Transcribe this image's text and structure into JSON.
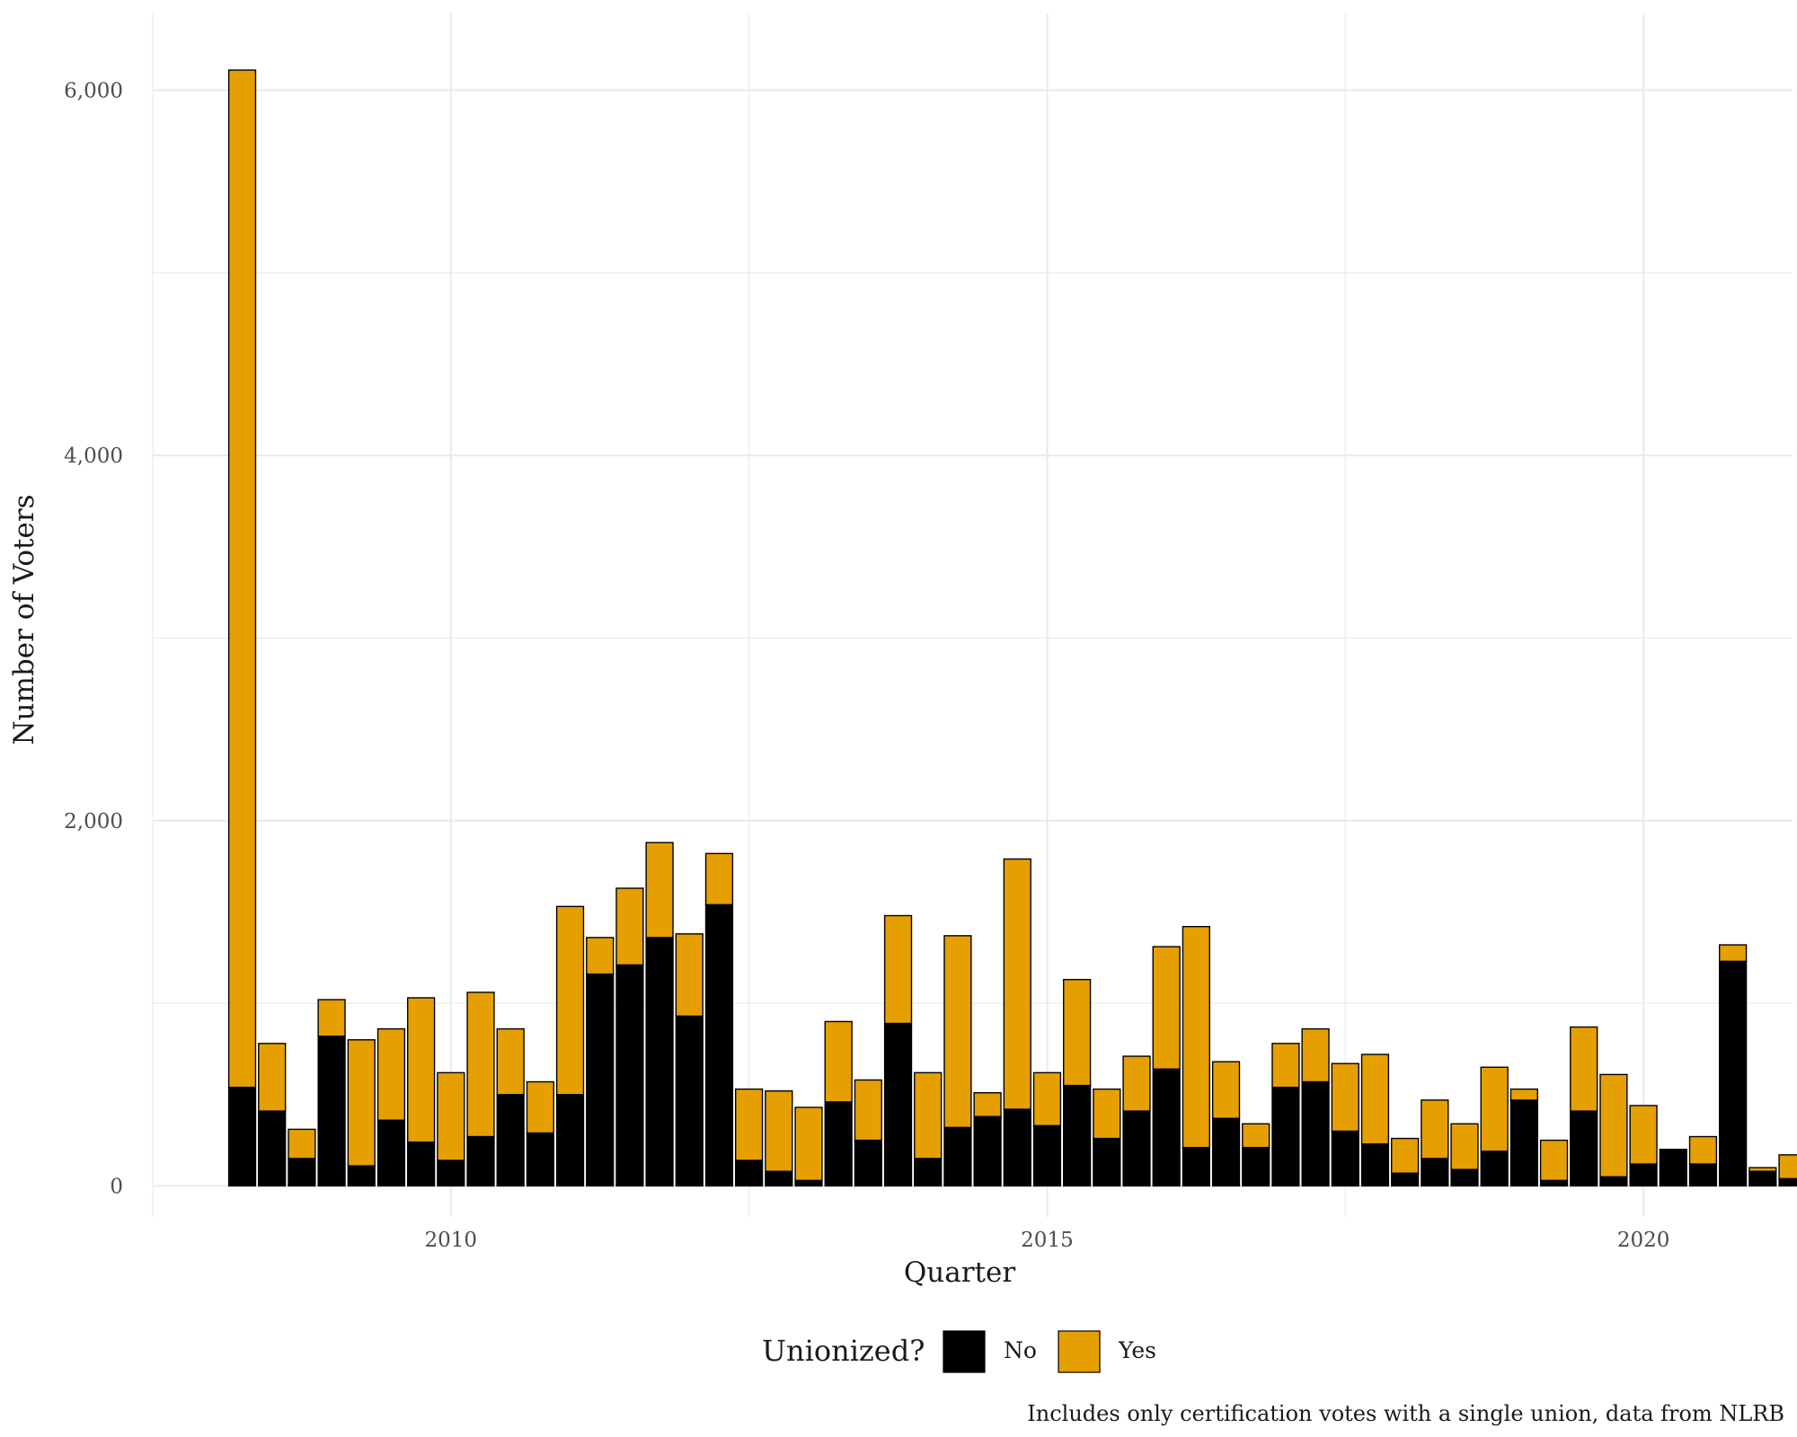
{
  "chart_data": {
    "type": "bar",
    "stacked": true,
    "xlabel": "Quarter",
    "ylabel": "Number of Voters",
    "caption": "Includes only certification votes with a single union, data from NLRB",
    "ylim": [
      -170,
      6420
    ],
    "xlim": [
      2007.5,
      2021.25
    ],
    "y_ticks": [
      0,
      2000,
      4000,
      6000
    ],
    "y_tick_labels": [
      "0",
      "2,000",
      "4,000",
      "6,000"
    ],
    "y_minor_ticks": [
      1000,
      3000,
      5000
    ],
    "x_ticks": [
      2010,
      2015,
      2020
    ],
    "x_tick_labels": [
      "2010",
      "2015",
      "2020"
    ],
    "x_minor_ticks": [
      2007.5,
      2012.5,
      2017.5
    ],
    "grid": true,
    "legend": {
      "title": "Unionized?",
      "position": "bottom",
      "items": [
        {
          "label": "No",
          "color": "#000000"
        },
        {
          "label": "Yes",
          "color": "#E69F00"
        }
      ]
    },
    "bar_outline_color": "#000000",
    "x": [
      2008.25,
      2008.5,
      2008.75,
      2009.0,
      2009.25,
      2009.5,
      2009.75,
      2010.0,
      2010.25,
      2010.5,
      2010.75,
      2011.0,
      2011.25,
      2011.5,
      2011.75,
      2012.0,
      2012.25,
      2012.5,
      2012.75,
      2013.0,
      2013.25,
      2013.5,
      2013.75,
      2014.0,
      2014.25,
      2014.5,
      2014.75,
      2015.0,
      2015.25,
      2015.5,
      2015.75,
      2016.0,
      2016.25,
      2016.5,
      2016.75,
      2017.0,
      2017.25,
      2017.5,
      2017.75,
      2018.0,
      2018.25,
      2018.5,
      2018.75,
      2019.0,
      2019.25,
      2019.5,
      2019.75,
      2020.0,
      2020.25,
      2020.5,
      2020.75,
      2021.0,
      2021.25
    ],
    "series": [
      {
        "name": "No",
        "values": [
          540,
          410,
          150,
          820,
          110,
          360,
          240,
          140,
          270,
          500,
          290,
          500,
          1160,
          1210,
          1360,
          930,
          1540,
          140,
          80,
          30,
          460,
          250,
          890,
          150,
          320,
          380,
          420,
          330,
          550,
          260,
          410,
          640,
          210,
          370,
          210,
          540,
          570,
          300,
          230,
          70,
          150,
          90,
          190,
          470,
          30,
          410,
          50,
          120,
          200,
          120,
          1230,
          80,
          40
        ]
      },
      {
        "name": "Yes",
        "values": [
          5570,
          370,
          160,
          200,
          690,
          500,
          790,
          480,
          790,
          360,
          280,
          1030,
          200,
          420,
          520,
          450,
          280,
          390,
          440,
          400,
          440,
          330,
          590,
          470,
          1050,
          130,
          1370,
          290,
          580,
          270,
          300,
          670,
          1210,
          310,
          130,
          240,
          290,
          370,
          490,
          190,
          320,
          250,
          460,
          60,
          220,
          460,
          560,
          320,
          0,
          150,
          90,
          20,
          130
        ]
      }
    ]
  }
}
